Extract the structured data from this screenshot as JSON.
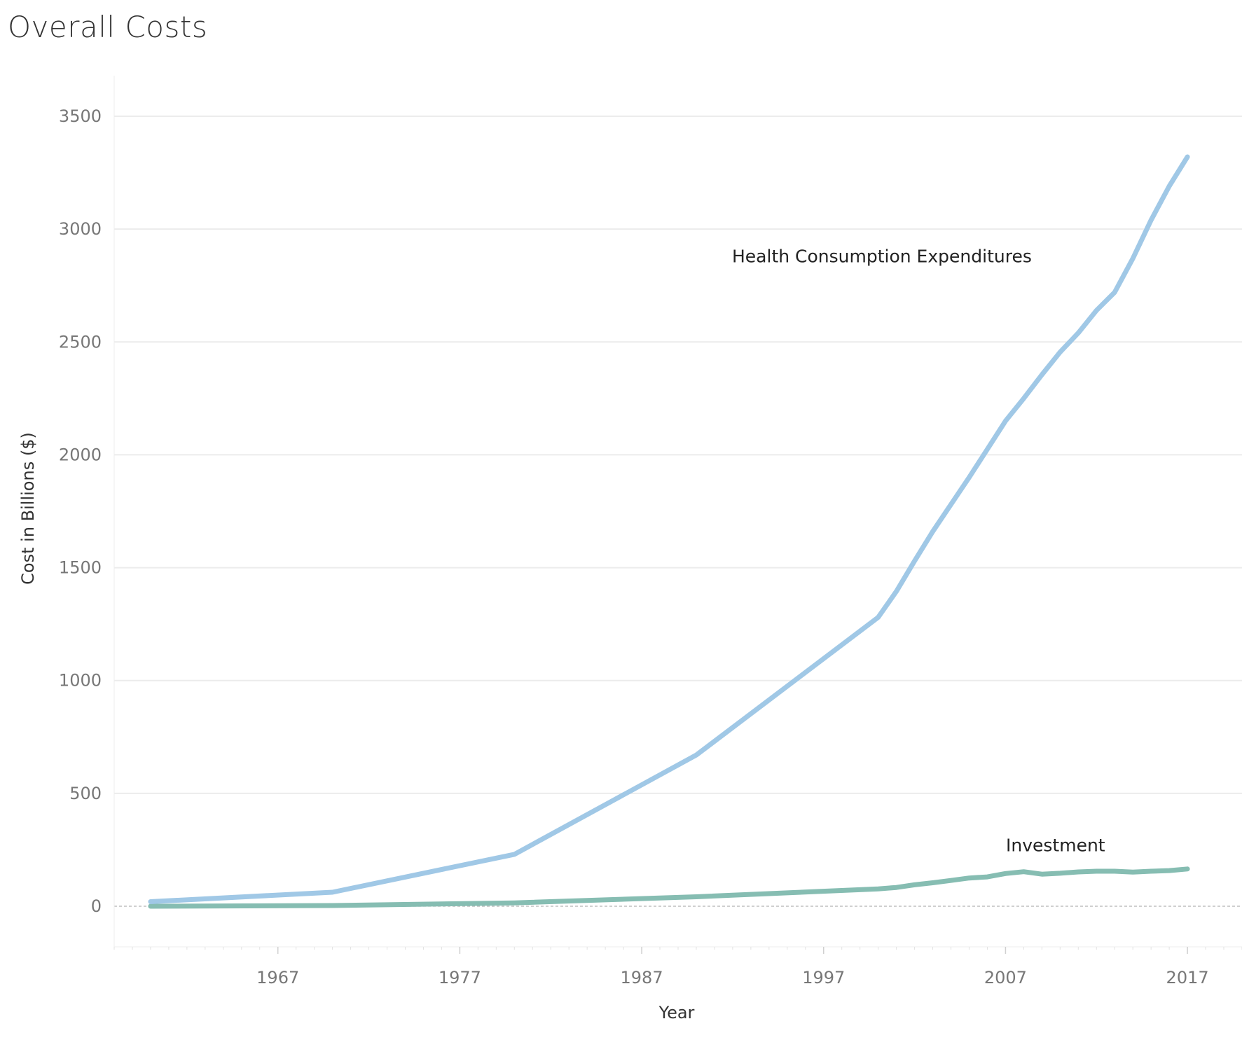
{
  "chart_data": {
    "type": "line",
    "title": "Overall Costs",
    "xlabel": "Year",
    "ylabel": "Cost in Billions ($)",
    "xlim": [
      1958,
      2020
    ],
    "ylim": [
      -180,
      3680
    ],
    "x_ticks": [
      1967,
      1977,
      1987,
      1997,
      2007,
      2017
    ],
    "y_ticks": [
      0,
      500,
      1000,
      1500,
      2000,
      2500,
      3000,
      3500
    ],
    "grid": true,
    "legend": "none",
    "series": [
      {
        "name": "Health Consumption Expenditures",
        "color": "#a0c8e6",
        "x": [
          1960,
          1970,
          1980,
          1990,
          2000,
          2001,
          2002,
          2003,
          2004,
          2005,
          2006,
          2007,
          2008,
          2009,
          2010,
          2011,
          2012,
          2013,
          2014,
          2015,
          2016,
          2017
        ],
        "y": [
          20,
          62,
          230,
          670,
          1280,
          1395,
          1530,
          1660,
          1780,
          1900,
          2025,
          2150,
          2250,
          2355,
          2455,
          2540,
          2640,
          2720,
          2870,
          3040,
          3190,
          3320
        ]
      },
      {
        "name": "Investment",
        "color": "#86bdb2",
        "x": [
          1960,
          1970,
          1980,
          1990,
          2000,
          2001,
          2002,
          2003,
          2004,
          2005,
          2006,
          2007,
          2008,
          2009,
          2010,
          2011,
          2012,
          2013,
          2014,
          2015,
          2016,
          2017
        ],
        "y": [
          0,
          3,
          15,
          42,
          77,
          83,
          95,
          104,
          114,
          125,
          130,
          145,
          153,
          142,
          146,
          152,
          155,
          155,
          151,
          155,
          158,
          165
        ]
      }
    ]
  }
}
